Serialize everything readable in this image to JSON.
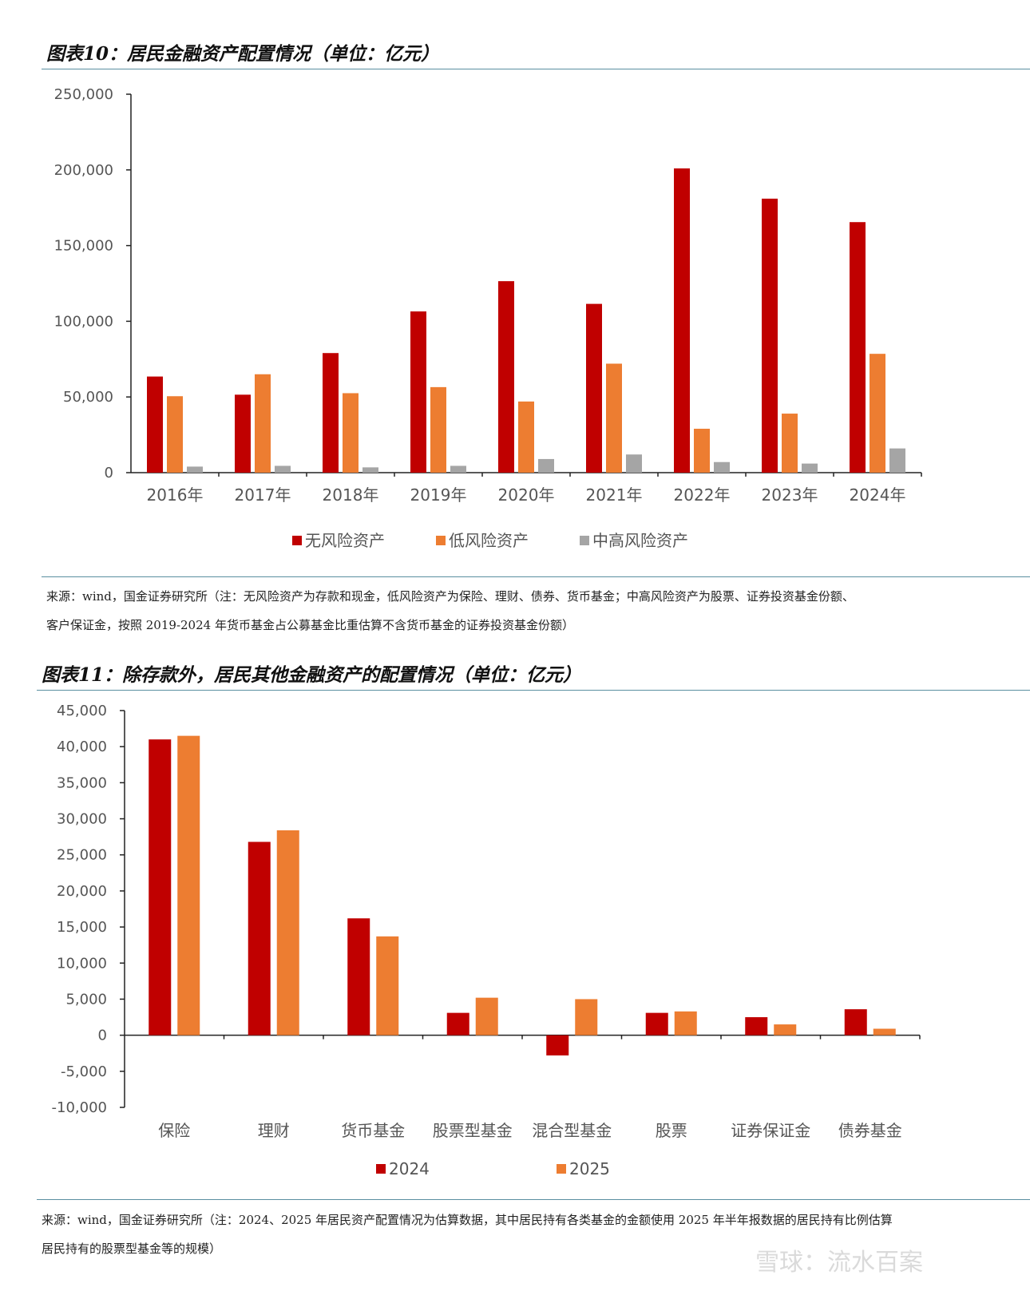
{
  "chart1": {
    "title": "图表10：居民金融资产配置情况（单位：亿元）",
    "source_line1": "来源：wind，国金证券研究所（注：无风险资产为存款和现金，低风险资产为保险、理财、债券、货币基金；中高风险资产为股票、证券投资基金份额、",
    "source_line2": "客户保证金，按照 2019-2024 年货币基金占公募基金比重估算不含货币基金的证券投资基金份额）"
  },
  "chart2": {
    "title": "图表11：除存款外，居民其他金融资产的配置情况（单位：亿元）",
    "source_line1": "来源：wind，国金证券研究所（注：2024、2025 年居民资产配置情况为估算数据，其中居民持有各类基金的金额使用 2025 年半年报数据的居民持有比例估算",
    "source_line2": "居民持有的股票型基金等的规模）"
  },
  "watermark": "雪球：流水百案",
  "chart_data": [
    {
      "type": "bar",
      "title": "图表10：居民金融资产配置情况（单位：亿元）",
      "categories": [
        "2016年",
        "2017年",
        "2018年",
        "2019年",
        "2020年",
        "2021年",
        "2022年",
        "2023年",
        "2024年"
      ],
      "series": [
        {
          "name": "无风险资产",
          "color": "#c00000",
          "values": [
            63500,
            51500,
            79000,
            106500,
            126500,
            111500,
            201000,
            181000,
            165500
          ]
        },
        {
          "name": "低风险资产",
          "color": "#ed7d31",
          "values": [
            50500,
            65000,
            52500,
            56500,
            47000,
            72000,
            29000,
            39000,
            78500
          ]
        },
        {
          "name": "中高风险资产",
          "color": "#a5a5a5",
          "values": [
            4000,
            4500,
            3500,
            4500,
            9000,
            12000,
            7000,
            6000,
            16000
          ]
        }
      ],
      "ylim": [
        0,
        250000
      ],
      "yticks": [
        0,
        50000,
        100000,
        150000,
        200000,
        250000
      ],
      "ytick_labels": [
        "0",
        "50,000",
        "100,000",
        "150,000",
        "200,000",
        "250,000"
      ],
      "legend": "bottom"
    },
    {
      "type": "bar",
      "title": "图表11：除存款外，居民其他金融资产的配置情况（单位：亿元）",
      "categories": [
        "保险",
        "理财",
        "货币基金",
        "股票型基金",
        "混合型基金",
        "股票",
        "证券保证金",
        "债券基金"
      ],
      "series": [
        {
          "name": "2024",
          "color": "#c00000",
          "values": [
            41000,
            26800,
            16200,
            3100,
            -2800,
            3100,
            2500,
            3600
          ]
        },
        {
          "name": "2025",
          "color": "#ed7d31",
          "values": [
            41500,
            28400,
            13700,
            5200,
            5000,
            3300,
            1500,
            900
          ]
        }
      ],
      "ylim": [
        -10000,
        45000
      ],
      "yticks": [
        -10000,
        -5000,
        0,
        5000,
        10000,
        15000,
        20000,
        25000,
        30000,
        35000,
        40000,
        45000
      ],
      "ytick_labels": [
        "-10,000",
        "-5,000",
        "0",
        "5,000",
        "10,000",
        "15,000",
        "20,000",
        "25,000",
        "30,000",
        "35,000",
        "40,000",
        "45,000"
      ],
      "legend": "bottom"
    }
  ]
}
